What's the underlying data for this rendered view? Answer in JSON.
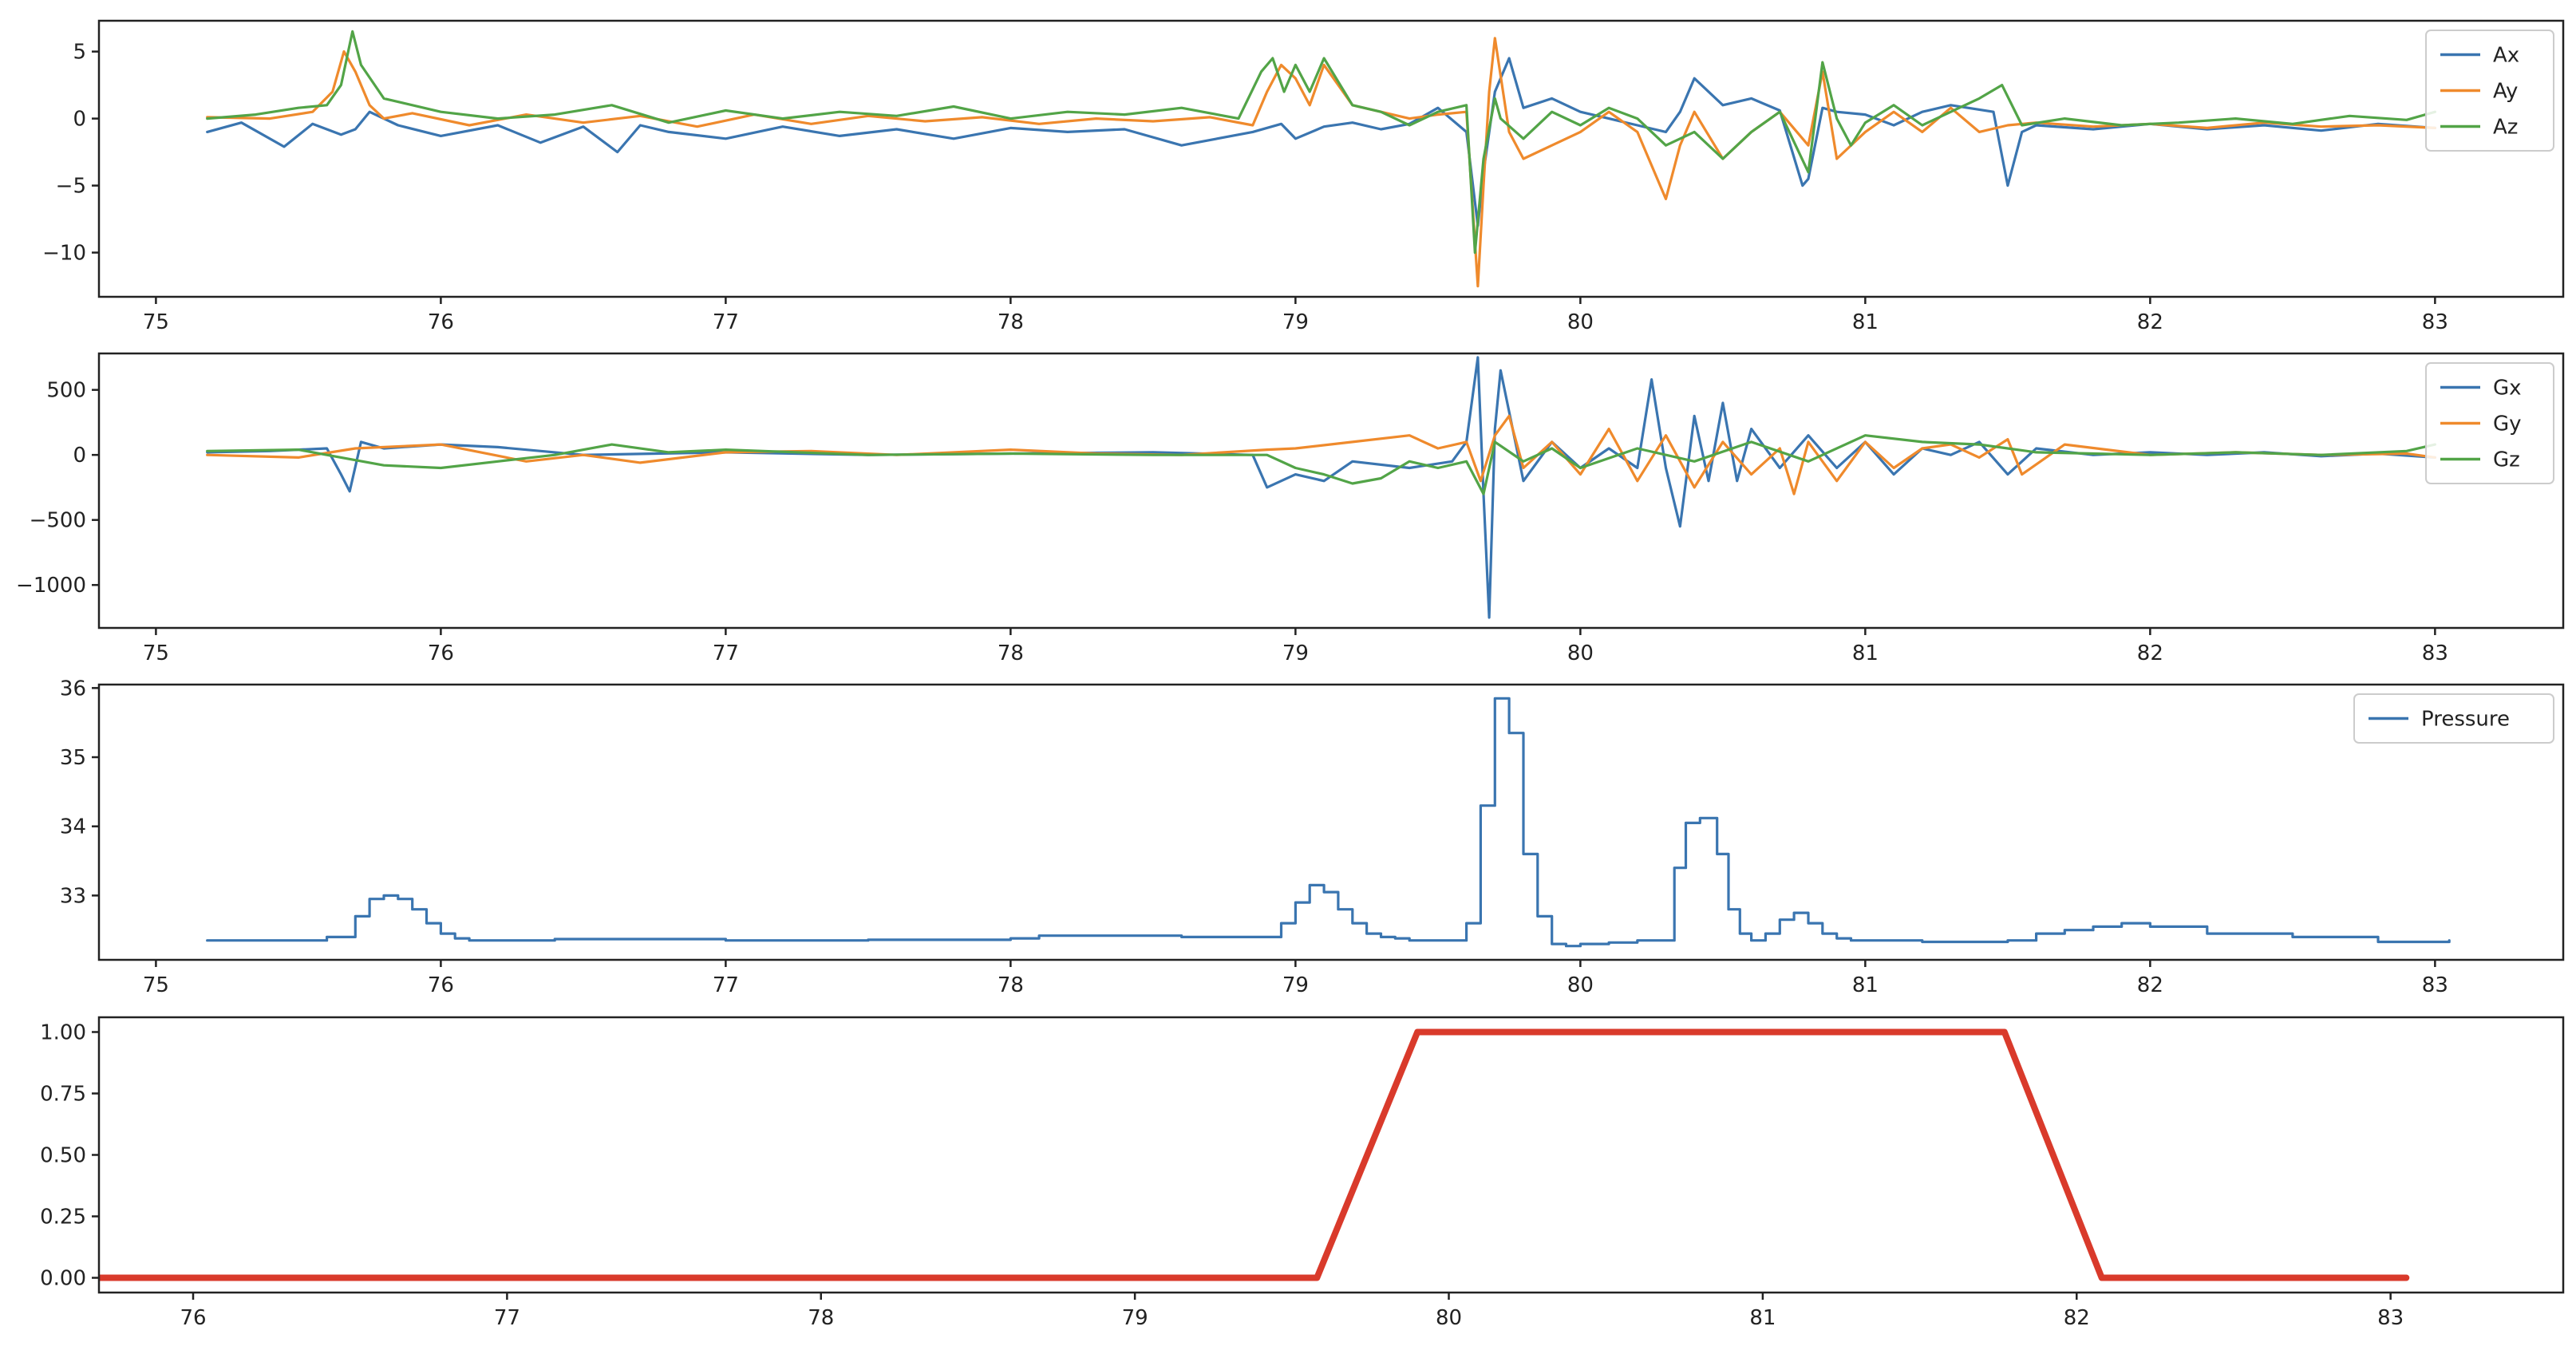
{
  "chart_data": [
    {
      "type": "line",
      "title": "",
      "xlabel": "",
      "ylabel": "",
      "xlim": [
        74.8,
        83.45
      ],
      "ylim": [
        -13.3,
        7.3
      ],
      "xticks": [
        75,
        76,
        77,
        78,
        79,
        80,
        81,
        82,
        83
      ],
      "yticks": [
        5,
        0,
        -5,
        -10
      ],
      "ytick_labels": [
        "5",
        "0",
        "−5",
        "−10"
      ],
      "legend": "upper-right",
      "grid": false,
      "series": [
        {
          "name": "Ax",
          "color": "#3a75b0",
          "x": [
            75.18,
            75.3,
            75.45,
            75.55,
            75.65,
            75.7,
            75.75,
            75.85,
            76.0,
            76.2,
            76.35,
            76.5,
            76.62,
            76.7,
            76.8,
            77.0,
            77.2,
            77.4,
            77.6,
            77.8,
            78.0,
            78.2,
            78.4,
            78.6,
            78.85,
            78.95,
            79.0,
            79.1,
            79.2,
            79.3,
            79.4,
            79.5,
            79.6,
            79.64,
            79.66,
            79.7,
            79.75,
            79.8,
            79.9,
            80.0,
            80.1,
            80.2,
            80.3,
            80.35,
            80.4,
            80.5,
            80.6,
            80.7,
            80.78,
            80.8,
            80.85,
            80.9,
            81.0,
            81.1,
            81.2,
            81.3,
            81.45,
            81.5,
            81.55,
            81.6,
            81.8,
            82.0,
            82.2,
            82.4,
            82.6,
            82.8,
            83.0
          ],
          "y": [
            -1.0,
            -0.3,
            -2.1,
            -0.4,
            -1.2,
            -0.8,
            0.5,
            -0.5,
            -1.3,
            -0.5,
            -1.8,
            -0.6,
            -2.5,
            -0.5,
            -1.0,
            -1.5,
            -0.6,
            -1.3,
            -0.8,
            -1.5,
            -0.7,
            -1.0,
            -0.8,
            -2.0,
            -1.0,
            -0.4,
            -1.5,
            -0.6,
            -0.3,
            -0.8,
            -0.4,
            0.8,
            -1.0,
            -8.0,
            -4.0,
            2.0,
            4.5,
            0.8,
            1.5,
            0.5,
            0.0,
            -0.5,
            -1.0,
            0.5,
            3.0,
            1.0,
            1.5,
            0.6,
            -5.0,
            -4.5,
            0.8,
            0.5,
            0.3,
            -0.5,
            0.5,
            1.0,
            0.5,
            -5.0,
            -1.0,
            -0.5,
            -0.8,
            -0.4,
            -0.8,
            -0.5,
            -0.9,
            -0.4,
            -0.7
          ]
        },
        {
          "name": "Ay",
          "color": "#ef8a2c",
          "x": [
            75.18,
            75.4,
            75.55,
            75.62,
            75.66,
            75.7,
            75.75,
            75.8,
            75.9,
            76.1,
            76.3,
            76.5,
            76.7,
            76.9,
            77.1,
            77.3,
            77.5,
            77.7,
            77.9,
            78.1,
            78.3,
            78.5,
            78.7,
            78.85,
            78.9,
            78.95,
            79.0,
            79.05,
            79.1,
            79.2,
            79.3,
            79.4,
            79.5,
            79.6,
            79.64,
            79.66,
            79.68,
            79.7,
            79.75,
            79.8,
            79.9,
            80.0,
            80.1,
            80.2,
            80.3,
            80.35,
            80.4,
            80.5,
            80.6,
            80.7,
            80.8,
            80.85,
            80.9,
            81.0,
            81.1,
            81.2,
            81.3,
            81.4,
            81.5,
            81.6,
            81.8,
            82.0,
            82.2,
            82.4,
            82.6,
            82.8,
            83.0
          ],
          "y": [
            0.1,
            0.0,
            0.5,
            2.0,
            5.0,
            3.5,
            1.0,
            0.0,
            0.4,
            -0.5,
            0.3,
            -0.3,
            0.2,
            -0.6,
            0.3,
            -0.4,
            0.2,
            -0.2,
            0.1,
            -0.4,
            0.0,
            -0.2,
            0.1,
            -0.5,
            2.0,
            4.0,
            3.0,
            1.0,
            4.0,
            1.0,
            0.5,
            0.0,
            0.3,
            0.5,
            -12.5,
            -5.0,
            2.0,
            6.0,
            -1.0,
            -3.0,
            -2.0,
            -1.0,
            0.5,
            -1.0,
            -6.0,
            -2.0,
            0.5,
            -3.0,
            -1.0,
            0.5,
            -2.0,
            3.5,
            -3.0,
            -1.0,
            0.5,
            -1.0,
            0.8,
            -1.0,
            -0.5,
            -0.3,
            -0.6,
            -0.4,
            -0.7,
            -0.3,
            -0.6,
            -0.5,
            -0.7
          ]
        },
        {
          "name": "Az",
          "color": "#52a447",
          "x": [
            75.18,
            75.35,
            75.5,
            75.6,
            75.65,
            75.69,
            75.72,
            75.8,
            76.0,
            76.2,
            76.4,
            76.6,
            76.8,
            77.0,
            77.2,
            77.4,
            77.6,
            77.8,
            78.0,
            78.2,
            78.4,
            78.6,
            78.8,
            78.88,
            78.92,
            78.96,
            79.0,
            79.05,
            79.1,
            79.2,
            79.3,
            79.4,
            79.5,
            79.6,
            79.63,
            79.66,
            79.7,
            79.72,
            79.8,
            79.9,
            80.0,
            80.1,
            80.2,
            80.3,
            80.4,
            80.5,
            80.6,
            80.7,
            80.8,
            80.85,
            80.9,
            80.95,
            81.0,
            81.1,
            81.2,
            81.3,
            81.4,
            81.48,
            81.55,
            81.7,
            81.9,
            82.1,
            82.3,
            82.5,
            82.7,
            82.9,
            83.0
          ],
          "y": [
            0.0,
            0.3,
            0.8,
            1.0,
            2.5,
            6.5,
            4.0,
            1.5,
            0.5,
            0.0,
            0.3,
            1.0,
            -0.3,
            0.6,
            0.0,
            0.5,
            0.2,
            0.9,
            0.0,
            0.5,
            0.3,
            0.8,
            0.0,
            3.5,
            4.5,
            2.0,
            4.0,
            2.0,
            4.5,
            1.0,
            0.5,
            -0.5,
            0.5,
            1.0,
            -10.0,
            -3.0,
            1.5,
            0.0,
            -1.5,
            0.5,
            -0.5,
            0.8,
            0.0,
            -2.0,
            -1.0,
            -3.0,
            -1.0,
            0.5,
            -4.0,
            4.2,
            0.0,
            -2.0,
            -0.3,
            1.0,
            -0.5,
            0.5,
            1.5,
            2.5,
            -0.5,
            0.0,
            -0.5,
            -0.3,
            0.0,
            -0.4,
            0.2,
            -0.1,
            0.5
          ]
        }
      ]
    },
    {
      "type": "line",
      "title": "",
      "xlabel": "",
      "ylabel": "",
      "xlim": [
        74.8,
        83.45
      ],
      "ylim": [
        -1330,
        780
      ],
      "xticks": [
        75,
        76,
        77,
        78,
        79,
        80,
        81,
        82,
        83
      ],
      "yticks": [
        500,
        0,
        -500,
        -1000
      ],
      "ytick_labels": [
        "500",
        "0",
        "−500",
        "−1000"
      ],
      "legend": "upper-right",
      "grid": false,
      "series": [
        {
          "name": "Gx",
          "color": "#3a75b0",
          "x": [
            75.18,
            75.4,
            75.6,
            75.65,
            75.68,
            75.72,
            75.8,
            76.0,
            76.2,
            76.5,
            77.0,
            77.5,
            78.0,
            78.5,
            78.85,
            78.9,
            79.0,
            79.1,
            79.2,
            79.4,
            79.55,
            79.6,
            79.64,
            79.66,
            79.68,
            79.7,
            79.72,
            79.8,
            79.9,
            80.0,
            80.1,
            80.2,
            80.25,
            80.3,
            80.35,
            80.4,
            80.45,
            80.5,
            80.55,
            80.6,
            80.7,
            80.8,
            80.9,
            81.0,
            81.1,
            81.2,
            81.3,
            81.4,
            81.5,
            81.6,
            81.8,
            82.0,
            82.2,
            82.4,
            82.6,
            82.8,
            83.0
          ],
          "y": [
            20,
            30,
            50,
            -150,
            -280,
            100,
            50,
            80,
            60,
            0,
            20,
            0,
            10,
            20,
            0,
            -250,
            -150,
            -200,
            -50,
            -100,
            -50,
            100,
            750,
            -300,
            -1250,
            200,
            650,
            -200,
            100,
            -100,
            50,
            -100,
            580,
            -100,
            -550,
            300,
            -200,
            400,
            -200,
            200,
            -100,
            150,
            -100,
            100,
            -150,
            50,
            0,
            100,
            -150,
            50,
            0,
            20,
            0,
            20,
            -10,
            10,
            -20
          ]
        },
        {
          "name": "Gy",
          "color": "#ef8a2c",
          "x": [
            75.18,
            75.5,
            75.7,
            76.0,
            76.3,
            76.5,
            76.7,
            77.0,
            77.3,
            77.6,
            78.0,
            78.3,
            78.6,
            78.9,
            79.0,
            79.2,
            79.4,
            79.5,
            79.6,
            79.65,
            79.7,
            79.75,
            79.8,
            79.9,
            80.0,
            80.1,
            80.2,
            80.3,
            80.4,
            80.5,
            80.6,
            80.7,
            80.75,
            80.8,
            80.9,
            81.0,
            81.1,
            81.2,
            81.3,
            81.4,
            81.5,
            81.55,
            81.7,
            82.0,
            82.3,
            82.6,
            82.9,
            83.0
          ],
          "y": [
            0,
            -20,
            50,
            80,
            -50,
            0,
            -60,
            20,
            30,
            0,
            40,
            10,
            0,
            40,
            50,
            100,
            150,
            50,
            100,
            -200,
            150,
            300,
            -100,
            100,
            -150,
            200,
            -200,
            150,
            -250,
            100,
            -150,
            50,
            -300,
            100,
            -200,
            100,
            -100,
            50,
            80,
            -20,
            120,
            -150,
            80,
            0,
            20,
            0,
            10,
            -20
          ]
        },
        {
          "name": "Gz",
          "color": "#52a447",
          "x": [
            75.18,
            75.5,
            75.6,
            75.8,
            76.0,
            76.2,
            76.4,
            76.6,
            76.8,
            77.0,
            77.5,
            78.0,
            78.5,
            78.9,
            79.0,
            79.1,
            79.2,
            79.3,
            79.4,
            79.5,
            79.6,
            79.66,
            79.7,
            79.8,
            79.9,
            80.0,
            80.2,
            80.4,
            80.6,
            80.8,
            81.0,
            81.2,
            81.4,
            81.5,
            81.6,
            81.8,
            82.0,
            82.3,
            82.6,
            82.9,
            83.0
          ],
          "y": [
            30,
            40,
            0,
            -80,
            -100,
            -50,
            0,
            80,
            20,
            40,
            0,
            10,
            0,
            0,
            -100,
            -150,
            -220,
            -180,
            -50,
            -100,
            -50,
            -300,
            100,
            -50,
            50,
            -100,
            50,
            -50,
            100,
            -50,
            150,
            100,
            80,
            50,
            20,
            10,
            0,
            20,
            0,
            30,
            80
          ]
        }
      ]
    },
    {
      "type": "line",
      "title": "",
      "xlabel": "",
      "ylabel": "",
      "xlim": [
        74.8,
        83.45
      ],
      "ylim": [
        32.07,
        36.05
      ],
      "xticks": [
        75,
        76,
        77,
        78,
        79,
        80,
        81,
        82,
        83
      ],
      "yticks": [
        36,
        35,
        34,
        33
      ],
      "ytick_labels": [
        "36",
        "35",
        "34",
        "33"
      ],
      "legend": "upper-right",
      "grid": false,
      "series": [
        {
          "name": "Pressure",
          "color": "#3a75b0",
          "step": true,
          "x": [
            75.18,
            75.6,
            75.7,
            75.75,
            75.8,
            75.85,
            75.9,
            75.95,
            76.0,
            76.05,
            76.1,
            76.4,
            77.0,
            77.5,
            78.0,
            78.1,
            78.6,
            78.95,
            79.0,
            79.05,
            79.1,
            79.15,
            79.2,
            79.25,
            79.3,
            79.35,
            79.4,
            79.6,
            79.65,
            79.7,
            79.75,
            79.8,
            79.85,
            79.9,
            79.95,
            80.0,
            80.1,
            80.2,
            80.3,
            80.33,
            80.37,
            80.42,
            80.48,
            80.52,
            80.56,
            80.6,
            80.65,
            80.7,
            80.75,
            80.8,
            80.85,
            80.9,
            80.95,
            81.0,
            81.2,
            81.5,
            81.6,
            81.7,
            81.8,
            81.9,
            82.0,
            82.2,
            82.5,
            82.8,
            83.05
          ],
          "y": [
            32.35,
            32.4,
            32.7,
            32.95,
            33.0,
            32.95,
            32.8,
            32.6,
            32.45,
            32.38,
            32.35,
            32.37,
            32.35,
            32.36,
            32.38,
            32.42,
            32.4,
            32.6,
            32.9,
            33.15,
            33.05,
            32.8,
            32.6,
            32.45,
            32.4,
            32.38,
            32.35,
            32.6,
            34.3,
            35.85,
            35.35,
            33.6,
            32.7,
            32.3,
            32.27,
            32.3,
            32.32,
            32.35,
            32.35,
            33.4,
            34.05,
            34.12,
            33.6,
            32.8,
            32.45,
            32.35,
            32.45,
            32.65,
            32.75,
            32.6,
            32.45,
            32.38,
            32.35,
            32.35,
            32.33,
            32.35,
            32.45,
            32.5,
            32.55,
            32.6,
            32.55,
            32.45,
            32.4,
            32.33,
            32.35
          ]
        }
      ]
    },
    {
      "type": "line",
      "title": "",
      "xlabel": "",
      "ylabel": "",
      "xlim": [
        75.7,
        83.55
      ],
      "ylim": [
        -0.06,
        1.06
      ],
      "xticks": [
        76,
        77,
        78,
        79,
        80,
        81,
        82,
        83
      ],
      "yticks": [
        1.0,
        0.75,
        0.5,
        0.25,
        0.0
      ],
      "ytick_labels": [
        "1.00",
        "0.75",
        "0.50",
        "0.25",
        "0.00"
      ],
      "legend": "none",
      "grid": false,
      "series": [
        {
          "color": "#d93a2b",
          "x": [
            75.7,
            79.58,
            79.9,
            81.77,
            82.08,
            83.05
          ],
          "y": [
            0,
            0,
            1,
            1,
            0,
            0
          ]
        }
      ]
    }
  ]
}
